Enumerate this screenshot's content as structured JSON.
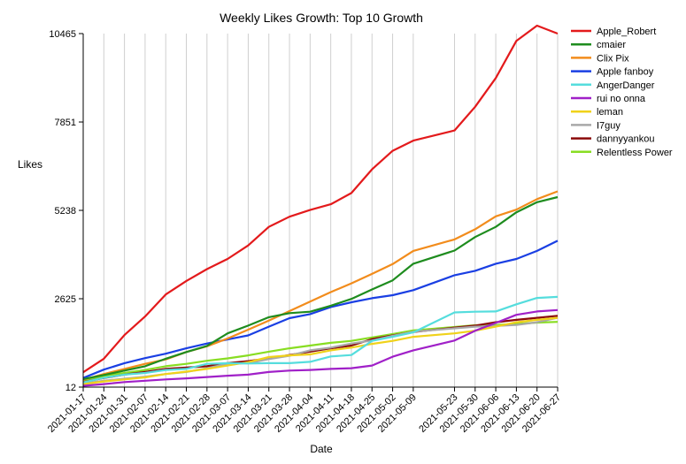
{
  "chart_data": {
    "type": "line",
    "title": "Weekly Likes Growth: Top 10 Growth",
    "xlabel": "Date",
    "ylabel": "Likes",
    "yticks": [
      12,
      2625,
      5238,
      7851,
      10465
    ],
    "ylim": [
      12,
      10465
    ],
    "grid": "vertical",
    "legend_position": "right",
    "x": [
      "2021-01-17",
      "2021-01-24",
      "2021-01-31",
      "2021-02-07",
      "2021-02-14",
      "2021-02-21",
      "2021-02-28",
      "2021-03-07",
      "2021-03-14",
      "2021-03-21",
      "2021-03-28",
      "2021-04-04",
      "2021-04-11",
      "2021-04-18",
      "2021-04-25",
      "2021-05-02",
      "2021-05-09",
      "2021-05-23",
      "2021-05-30",
      "2021-06-06",
      "2021-06-13",
      "2021-06-20",
      "2021-06-27"
    ],
    "x_days": [
      0,
      7,
      14,
      21,
      28,
      35,
      42,
      49,
      56,
      63,
      70,
      77,
      84,
      91,
      98,
      105,
      112,
      126,
      133,
      140,
      147,
      154,
      161
    ],
    "series": [
      {
        "name": "Apple_Robert",
        "color": "#e31a1c",
        "values": [
          450,
          850,
          1550,
          2100,
          2750,
          3150,
          3500,
          3800,
          4200,
          4750,
          5050,
          5250,
          5420,
          5750,
          6450,
          7000,
          7300,
          7600,
          8300,
          9150,
          10250,
          10700,
          10465
        ]
      },
      {
        "name": "cmaier",
        "color": "#1e8c1e",
        "values": [
          250,
          370,
          500,
          630,
          850,
          1050,
          1230,
          1600,
          1830,
          2080,
          2200,
          2240,
          2420,
          2620,
          2900,
          3170,
          3660,
          4050,
          4450,
          4750,
          5180,
          5480,
          5630
        ]
      },
      {
        "name": "Clix Pix",
        "color": "#f28c1c",
        "values": [
          230,
          400,
          550,
          700,
          830,
          1050,
          1220,
          1450,
          1710,
          1980,
          2260,
          2540,
          2820,
          3080,
          3360,
          3650,
          4040,
          4380,
          4680,
          5060,
          5260,
          5570,
          5800
        ]
      },
      {
        "name": "Apple fanboy",
        "color": "#1a3fe3",
        "values": [
          280,
          530,
          720,
          870,
          1000,
          1160,
          1300,
          1420,
          1540,
          1800,
          2050,
          2170,
          2380,
          2520,
          2640,
          2730,
          2880,
          3320,
          3450,
          3660,
          3800,
          4040,
          4340
        ]
      },
      {
        "name": "AngerDanger",
        "color": "#55dddd",
        "values": [
          150,
          290,
          380,
          430,
          520,
          550,
          700,
          720,
          710,
          720,
          720,
          760,
          920,
          960,
          1380,
          1500,
          1630,
          2220,
          2240,
          2250,
          2460,
          2650,
          2680
        ]
      },
      {
        "name": "rui no onna",
        "color": "#a020c8",
        "values": [
          50,
          100,
          160,
          200,
          240,
          270,
          310,
          350,
          380,
          460,
          500,
          520,
          550,
          570,
          650,
          910,
          1100,
          1390,
          1680,
          1910,
          2150,
          2250,
          2290
        ]
      },
      {
        "name": "leman",
        "color": "#f0d21a",
        "values": [
          100,
          180,
          240,
          300,
          400,
          470,
          550,
          650,
          750,
          900,
          950,
          980,
          1100,
          1180,
          1290,
          1380,
          1500,
          1600,
          1680,
          1800,
          1930,
          2000,
          2060
        ]
      },
      {
        "name": "I7guy",
        "color": "#a8a8a8",
        "values": [
          120,
          200,
          260,
          320,
          400,
          460,
          570,
          700,
          720,
          840,
          940,
          1100,
          1180,
          1300,
          1390,
          1530,
          1650,
          1750,
          1800,
          1820,
          1850,
          1930,
          2060
        ]
      },
      {
        "name": "dannyyankou",
        "color": "#8b0a0a",
        "values": [
          160,
          280,
          380,
          460,
          550,
          590,
          630,
          720,
          780,
          860,
          960,
          1060,
          1160,
          1240,
          1430,
          1540,
          1640,
          1770,
          1830,
          1930,
          2000,
          2060,
          2120
        ]
      },
      {
        "name": "Relentless Power",
        "color": "#88dd22",
        "values": [
          210,
          340,
          430,
          520,
          630,
          700,
          790,
          860,
          950,
          1060,
          1160,
          1240,
          1320,
          1380,
          1480,
          1580,
          1690,
          1790,
          1840,
          1850,
          1880,
          1920,
          1940
        ]
      }
    ]
  }
}
